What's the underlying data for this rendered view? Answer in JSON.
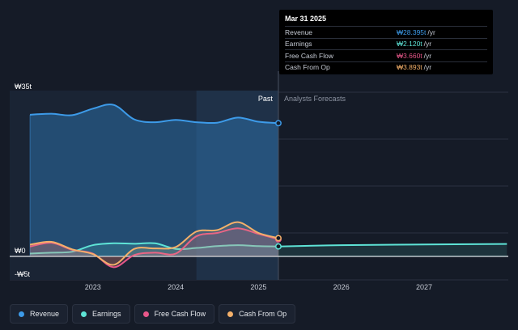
{
  "chart_data": {
    "type": "area",
    "y_unit_prefix": "₩",
    "ylim_t": [
      -5,
      35
    ],
    "y_ticks": [
      {
        "value": 35,
        "label": "₩35t"
      },
      {
        "value": 0,
        "label": "₩0"
      },
      {
        "value": -5,
        "label": "-₩5t"
      }
    ],
    "x_ticks": [
      {
        "value": 2023.0,
        "label": "2023"
      },
      {
        "value": 2024.0,
        "label": "2024"
      },
      {
        "value": 2025.0,
        "label": "2025"
      },
      {
        "value": 2026.0,
        "label": "2026"
      },
      {
        "value": 2027.0,
        "label": "2027"
      }
    ],
    "xlim": [
      2022.0,
      2028.0
    ],
    "past_end": 2025.24,
    "highlight_start": 2024.25,
    "section_labels": {
      "past": "Past",
      "forecast": "Analysts Forecasts"
    },
    "series": [
      {
        "name": "Revenue",
        "color": "#3d9be9",
        "x": [
          2022.24,
          2022.5,
          2022.75,
          2023.0,
          2023.25,
          2023.5,
          2023.75,
          2024.0,
          2024.25,
          2024.5,
          2024.75,
          2025.0,
          2025.24
        ],
        "y": [
          30.2,
          30.4,
          30.1,
          31.5,
          32.3,
          29.2,
          28.6,
          29.1,
          28.6,
          28.5,
          29.6,
          28.7,
          28.395
        ]
      },
      {
        "name": "Earnings",
        "color": "#5ee3d6",
        "x": [
          2022.24,
          2022.5,
          2022.75,
          2023.0,
          2023.25,
          2023.5,
          2023.75,
          2024.0,
          2024.25,
          2024.5,
          2024.75,
          2025.0,
          2025.24
        ],
        "y": [
          0.6,
          0.8,
          1.0,
          2.4,
          2.8,
          2.7,
          2.8,
          1.6,
          1.8,
          2.2,
          2.4,
          2.2,
          2.12
        ],
        "forecast_x": [
          2025.24,
          2026.0,
          2027.0,
          2028.0
        ],
        "forecast_y": [
          2.12,
          2.4,
          2.55,
          2.65
        ]
      },
      {
        "name": "Free Cash Flow",
        "color": "#e8578a",
        "x": [
          2022.24,
          2022.5,
          2022.75,
          2023.0,
          2023.25,
          2023.5,
          2023.75,
          2024.0,
          2024.25,
          2024.5,
          2024.75,
          2025.0,
          2025.24
        ],
        "y": [
          2.1,
          2.9,
          1.4,
          0.6,
          -2.3,
          0.3,
          0.8,
          0.6,
          4.3,
          5.0,
          6.0,
          4.8,
          3.66
        ]
      },
      {
        "name": "Cash From Op",
        "color": "#f4b06a",
        "x": [
          2022.24,
          2022.5,
          2022.75,
          2023.0,
          2023.25,
          2023.5,
          2023.75,
          2024.0,
          2024.25,
          2024.5,
          2024.75,
          2025.0,
          2025.24
        ],
        "y": [
          2.5,
          3.1,
          1.5,
          0.5,
          -1.8,
          1.6,
          1.7,
          2.0,
          5.3,
          5.6,
          7.3,
          5.0,
          3.893
        ]
      }
    ]
  },
  "tooltip": {
    "date": "Mar 31 2025",
    "rows": [
      {
        "name": "Revenue",
        "value": "₩28.395t",
        "unit": "/yr",
        "color": "#3d9be9"
      },
      {
        "name": "Earnings",
        "value": "₩2.120t",
        "unit": "/yr",
        "color": "#5ee3d6"
      },
      {
        "name": "Free Cash Flow",
        "value": "₩3.660t",
        "unit": "/yr",
        "color": "#e8578a"
      },
      {
        "name": "Cash From Op",
        "value": "₩3.893t",
        "unit": "/yr",
        "color": "#f4b06a"
      }
    ]
  },
  "legend": [
    {
      "label": "Revenue",
      "color": "#3d9be9"
    },
    {
      "label": "Earnings",
      "color": "#5ee3d6"
    },
    {
      "label": "Free Cash Flow",
      "color": "#e8578a"
    },
    {
      "label": "Cash From Op",
      "color": "#f4b06a"
    }
  ]
}
